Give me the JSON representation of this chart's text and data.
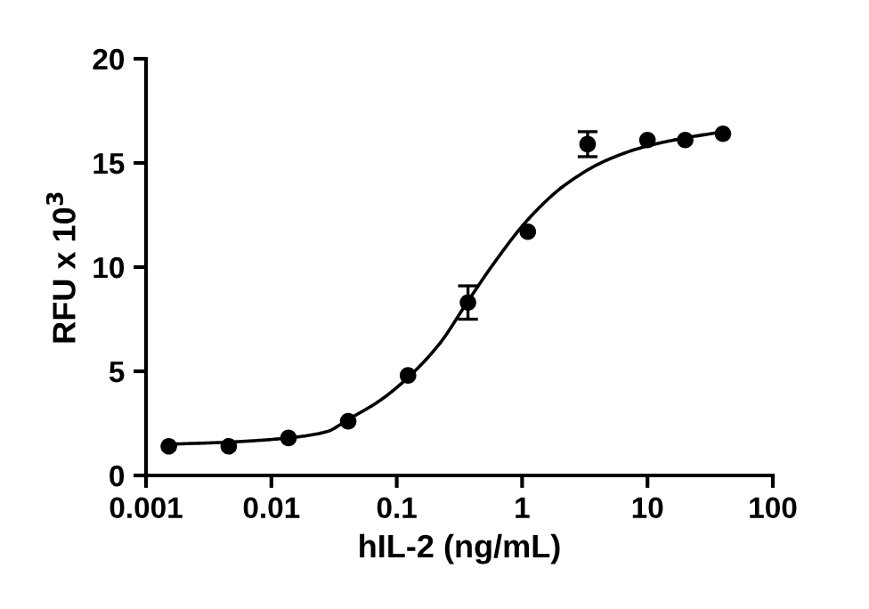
{
  "chart_data": {
    "type": "scatter",
    "xlabel": "hIL-2 (ng/mL)",
    "ylabel": "RFU x 10$^{3}$",
    "log": "x",
    "xlim": [
      0.001,
      100
    ],
    "xticks": [
      0.001,
      0.01,
      0.1,
      1,
      10,
      100
    ],
    "ylim": [
      0,
      20
    ],
    "yticks": [
      0,
      5,
      10,
      15,
      20
    ],
    "grid": false,
    "series": [
      {
        "color": "#000000",
        "marker": "circle",
        "x": [
          0.00152,
          0.00457,
          0.0137,
          0.041,
          0.123,
          0.37,
          1.11,
          3.33,
          10,
          20,
          40
        ],
        "values": [
          1.4,
          1.4,
          1.8,
          2.6,
          4.8,
          8.3,
          11.7,
          15.9,
          16.1,
          16.1,
          16.4
        ],
        "errors": [
          null,
          null,
          null,
          null,
          null,
          0.8,
          null,
          0.6,
          null,
          null,
          null
        ]
      },
      {
        "type": "line",
        "color": "#000000",
        "marker": "none",
        "line_style": "solid",
        "x": [
          0.00155,
          0.00459,
          0.0136,
          0.0276,
          0.0413,
          0.0736,
          0.123,
          0.218,
          0.364,
          0.582,
          1.12,
          2.15,
          4.6,
          9.8,
          20,
          40.6
        ],
        "values": [
          1.5,
          1.6,
          1.8,
          2.1,
          2.7,
          3.6,
          4.7,
          6.3,
          8.3,
          10.1,
          12.3,
          13.9,
          15.1,
          15.8,
          16.2,
          16.5
        ]
      }
    ]
  }
}
